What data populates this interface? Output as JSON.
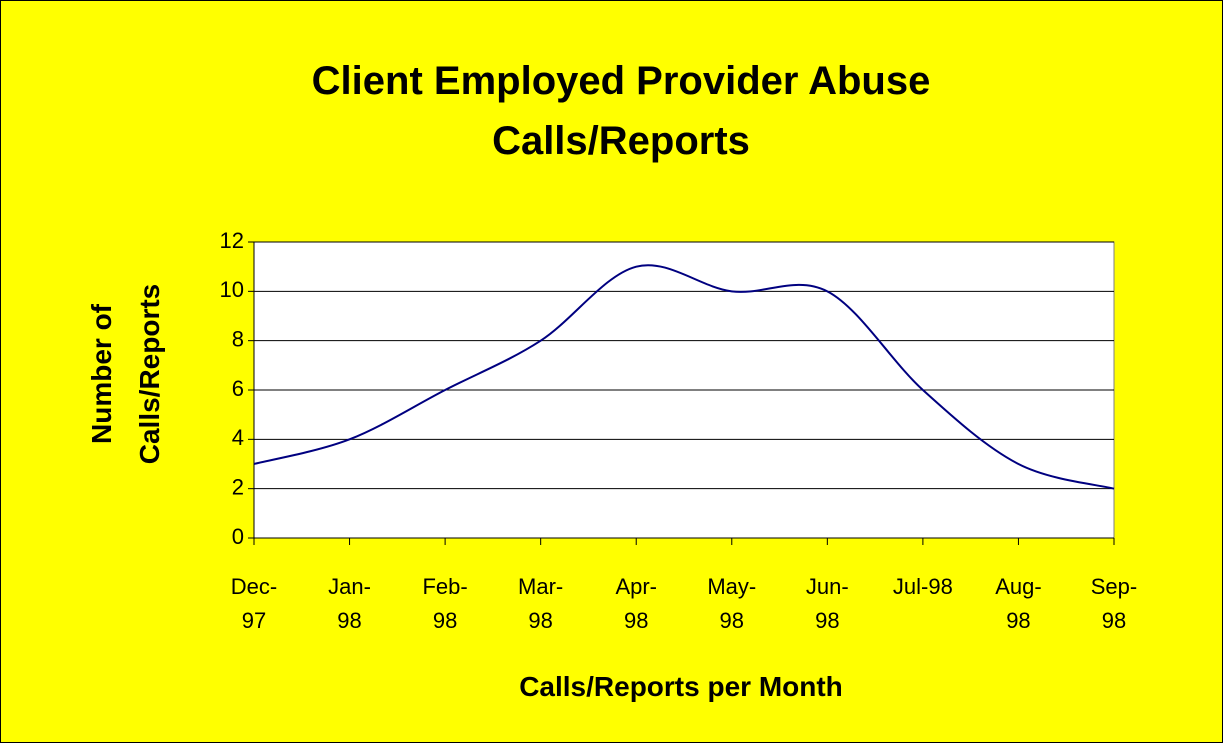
{
  "chart_data": {
    "type": "line",
    "title": "Client Employed Provider Abuse Calls/Reports",
    "x_label": "Calls/Reports per Month",
    "y_label": "Number of Calls/Reports",
    "categories": [
      "Dec-97",
      "Jan-98",
      "Feb-98",
      "Mar-98",
      "Apr-98",
      "May-98",
      "Jun-98",
      "Jul-98",
      "Aug-98",
      "Sep-98"
    ],
    "series": [
      {
        "name": "Calls/Reports",
        "color": "#000080",
        "values": [
          3,
          4,
          6,
          8,
          11,
          10,
          10,
          6,
          3,
          2
        ]
      }
    ],
    "ylim": [
      0,
      12
    ],
    "yticks": [
      0,
      2,
      4,
      6,
      8,
      10,
      12
    ],
    "grid": true,
    "smooth": true,
    "background": "#ffff00"
  }
}
